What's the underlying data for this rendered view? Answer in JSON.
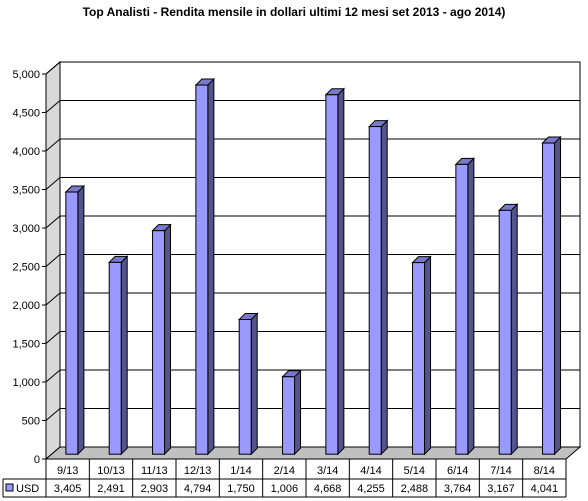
{
  "chart_data": {
    "type": "bar",
    "title": "Top Analisti - Rendita mensile in dollari ultimi 12 mesi set 2013 - ago 2014)",
    "xlabel": "",
    "ylabel": "",
    "ylim": [
      0,
      5000
    ],
    "y_ticks": [
      "0",
      "500",
      "1,000",
      "1,500",
      "2,000",
      "2,500",
      "3,000",
      "3,500",
      "4,000",
      "4,500",
      "5,000"
    ],
    "categories": [
      "9/13",
      "10/13",
      "11/13",
      "12/13",
      "1/14",
      "2/14",
      "3/14",
      "4/14",
      "5/14",
      "6/14",
      "7/14",
      "8/14"
    ],
    "series": [
      {
        "name": "USD",
        "color": "#9999ff",
        "values": [
          3405,
          2491,
          2903,
          4794,
          1750,
          1006,
          4668,
          4255,
          2488,
          3764,
          3167,
          4041
        ],
        "labels": [
          "3,405",
          "2,491",
          "2,903",
          "4,794",
          "1,750",
          "1,006",
          "4,668",
          "4,255",
          "2,488",
          "3,764",
          "3,167",
          "4,041"
        ]
      }
    ],
    "grid": true,
    "legend": "data-table"
  }
}
